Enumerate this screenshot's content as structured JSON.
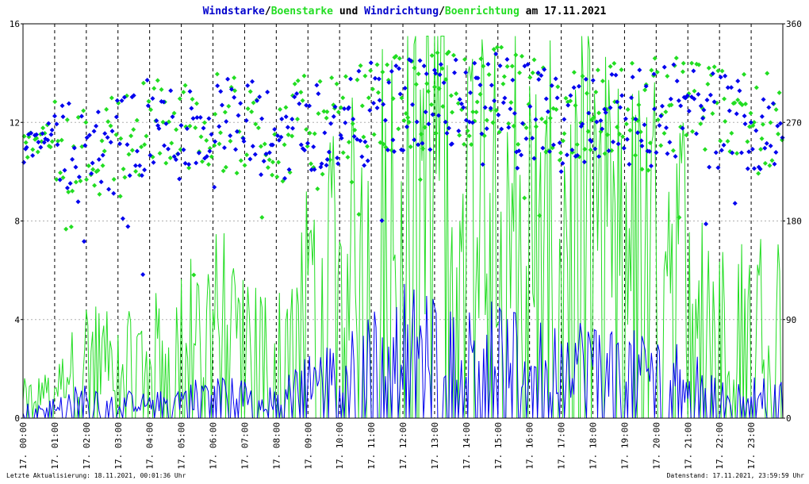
{
  "chart_data": {
    "type": "scatter",
    "title_parts": [
      {
        "text": "Windstarke",
        "color": "#0000cc"
      },
      {
        "text": "/",
        "color": "#000000"
      },
      {
        "text": "Boenstarke",
        "color": "#22dd22"
      },
      {
        "text": " und ",
        "color": "#000000"
      },
      {
        "text": "Windrichtung",
        "color": "#0000cc"
      },
      {
        "text": "/",
        "color": "#000000"
      },
      {
        "text": "Boenrichtung",
        "color": "#22dd22"
      },
      {
        "text": " am 17.11.2021",
        "color": "#000000"
      }
    ],
    "y_left": {
      "min": 0,
      "max": 16,
      "ticks": [
        0,
        4,
        8,
        12,
        16
      ]
    },
    "y_right": {
      "min": 0,
      "max": 360,
      "ticks": [
        0,
        90,
        180,
        270,
        360
      ]
    },
    "x_ticks": [
      "17. 00:00",
      "17. 01:00",
      "17. 02:00",
      "17. 03:00",
      "17. 04:00",
      "17. 05:00",
      "17. 06:00",
      "17. 07:00",
      "17. 08:00",
      "17. 09:00",
      "17. 10:00",
      "17. 11:00",
      "17. 12:00",
      "17. 13:00",
      "17. 14:00",
      "17. 15:00",
      "17. 16:00",
      "17. 17:00",
      "17. 18:00",
      "17. 19:00",
      "17. 20:00",
      "17. 21:00",
      "17. 22:00",
      "17. 23:00"
    ],
    "x_range_hours": [
      0,
      24
    ],
    "grid": true,
    "series": [
      {
        "color": "#0000ee",
        "kind": "line",
        "axis": "left",
        "hourly_mean": [
          0.3,
          0.4,
          0.8,
          0.6,
          0.5,
          0.7,
          1.0,
          0.8,
          0.6,
          1.4,
          1.6,
          2.2,
          2.8,
          2.6,
          2.4,
          2.4,
          2.0,
          2.0,
          2.2,
          1.8,
          1.8,
          1.5,
          0.8,
          0.9
        ]
      },
      {
        "color": "#22dd22",
        "kind": "line",
        "axis": "left",
        "hourly_mean": [
          0.8,
          1.0,
          2.5,
          2.0,
          2.5,
          3.0,
          4.0,
          3.5,
          2.5,
          5.0,
          6.0,
          7.5,
          9.0,
          9.5,
          9.0,
          9.0,
          8.0,
          7.5,
          8.0,
          7.0,
          7.0,
          6.5,
          3.5,
          4.0
        ]
      },
      {
        "color": "#0000ee",
        "kind": "points",
        "axis": "right",
        "hourly_mean": [
          245,
          260,
          235,
          250,
          265,
          260,
          270,
          265,
          255,
          270,
          260,
          280,
          285,
          285,
          290,
          290,
          280,
          270,
          280,
          275,
          285,
          280,
          270,
          270
        ]
      },
      {
        "color": "#22dd22",
        "kind": "points",
        "axis": "right",
        "hourly_mean": [
          245,
          260,
          240,
          255,
          270,
          265,
          270,
          265,
          255,
          270,
          265,
          285,
          290,
          290,
          295,
          295,
          285,
          275,
          285,
          280,
          290,
          285,
          275,
          275
        ]
      }
    ]
  },
  "footer": {
    "left": "Letzte Aktualisierung: 18.11.2021, 00:01:36 Uhr",
    "right": "Datenstand: 17.11.2021, 23:59:59 Uhr"
  }
}
